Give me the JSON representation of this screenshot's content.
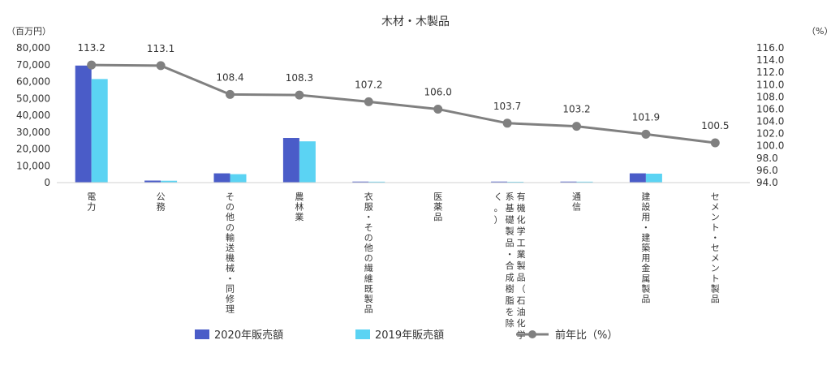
{
  "chart_data": {
    "type": "bar",
    "title": "木材・木製品",
    "y_left_unit": "（百万円）",
    "y_right_unit": "（%）",
    "ylim_left": [
      0,
      80000
    ],
    "yticks_left": [
      "0",
      "10,000",
      "20,000",
      "30,000",
      "40,000",
      "50,000",
      "60,000",
      "70,000",
      "80,000"
    ],
    "ylim_right": [
      94,
      116
    ],
    "yticks_right": [
      "94.0",
      "96.0",
      "98.0",
      "100.0",
      "102.0",
      "104.0",
      "106.0",
      "108.0",
      "110.0",
      "112.0",
      "114.0",
      "116.0"
    ],
    "categories": [
      [
        "電",
        "力"
      ],
      [
        "公",
        "務"
      ],
      [
        "そ",
        "の",
        "他",
        "の",
        "輸",
        "送",
        "機",
        "械",
        "・",
        "同",
        "修",
        "理"
      ],
      [
        "農",
        "林",
        "業"
      ],
      [
        "衣",
        "服",
        "・",
        "そ",
        "の",
        "他",
        "の",
        "繊",
        "維",
        "既",
        "製",
        "品"
      ],
      [
        "医",
        "薬",
        "品"
      ],
      [
        "有機化学工業製品（石油化学",
        "系基礎製品・合成樹脂を除",
        "く。）"
      ],
      [
        "通",
        "信"
      ],
      [
        "建",
        "設",
        "用",
        "・",
        "建",
        "築",
        "用",
        "金",
        "属",
        "製",
        "品"
      ],
      [
        "セ",
        "メ",
        "ン",
        "ト",
        "・",
        "セ",
        "メ",
        "ン",
        "ト",
        "製",
        "品"
      ]
    ],
    "series": [
      {
        "name": "2020年販売額",
        "axis": "left",
        "color": "#4a5cc8",
        "values": [
          69500,
          1200,
          5500,
          26500,
          600,
          0,
          600,
          600,
          5500,
          0
        ]
      },
      {
        "name": "2019年販売額",
        "axis": "left",
        "color": "#5bd3f3",
        "values": [
          61500,
          1100,
          5000,
          24500,
          550,
          0,
          500,
          550,
          5300,
          0
        ]
      },
      {
        "name": "前年比（%）",
        "axis": "right",
        "type": "line",
        "color": "#808080",
        "values": [
          113.2,
          113.1,
          108.4,
          108.3,
          107.2,
          106.0,
          103.7,
          103.2,
          101.9,
          100.5
        ]
      }
    ],
    "data_labels": [
      "113.2",
      "113.1",
      "108.4",
      "108.3",
      "107.2",
      "106.0",
      "103.7",
      "103.2",
      "101.9",
      "100.5"
    ],
    "legend_position": "bottom",
    "grid": false
  }
}
